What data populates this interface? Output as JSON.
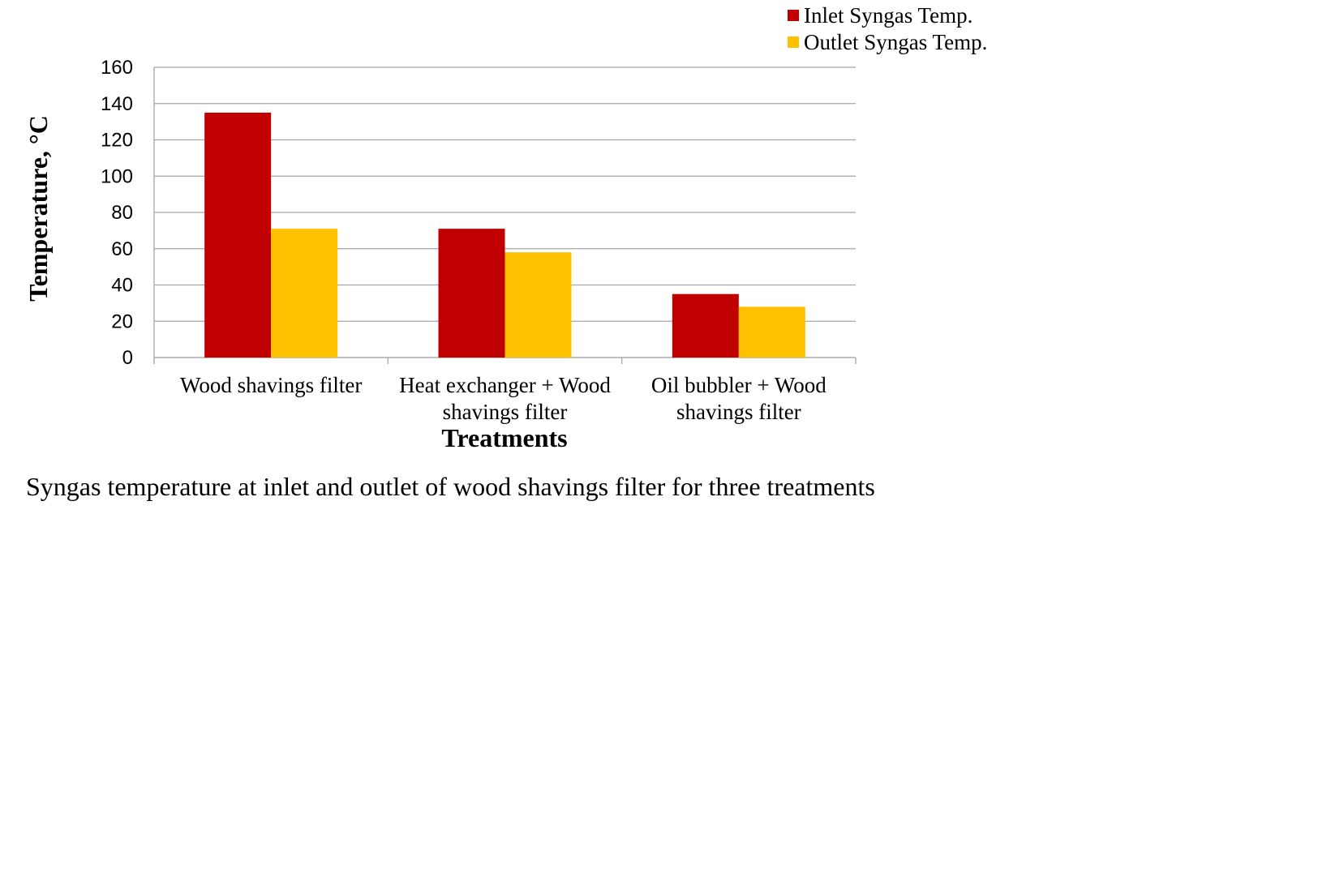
{
  "chart_data": {
    "type": "bar",
    "categories": [
      [
        "Wood shavings filter"
      ],
      [
        "Heat exchanger + Wood",
        "shavings filter"
      ],
      [
        "Oil bubbler + Wood",
        "shavings filter"
      ]
    ],
    "series": [
      {
        "name": "Inlet Syngas Temp.",
        "color": "#C00000",
        "values": [
          135,
          71,
          35
        ]
      },
      {
        "name": "Outlet Syngas Temp.",
        "color": "#FFC000",
        "values": [
          71,
          58,
          28
        ]
      }
    ],
    "xlabel": "Treatments",
    "ylabel": "Temperature, °C",
    "ylim": [
      0,
      160
    ],
    "yticks": [
      0,
      20,
      40,
      60,
      80,
      100,
      120,
      140,
      160
    ],
    "grid": true,
    "gridColor": "#A6A6A6",
    "legend_position": "top-right"
  },
  "caption": "Syngas temperature at inlet and outlet of wood shavings filter for three treatments"
}
